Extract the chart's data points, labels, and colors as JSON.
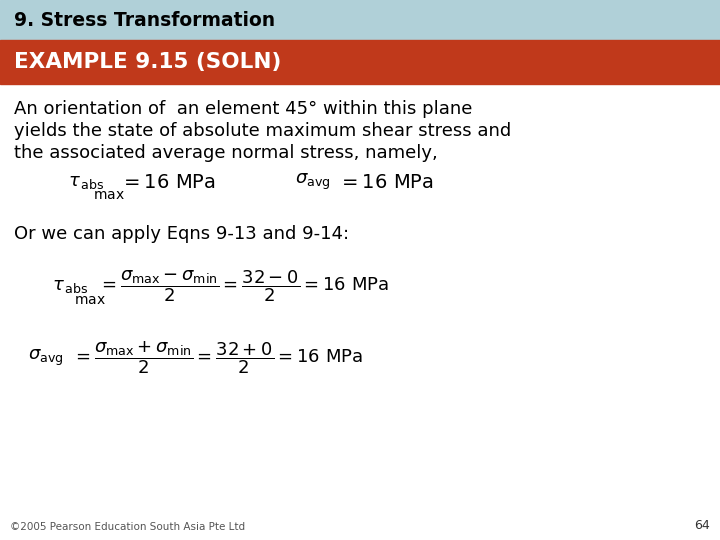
{
  "title_bar_text": "9. Stress Transformation",
  "title_bar_bg": "#b0d0d8",
  "title_bar_fg": "#000000",
  "subtitle_bar_text": "EXAMPLE 9.15 (SOLN)",
  "subtitle_bar_bg": "#c0391b",
  "subtitle_bar_fg": "#ffffff",
  "body_bg": "#ffffff",
  "footer_text": "©2005 Pearson Education South Asia Pte Ltd",
  "footer_page": "64",
  "paragraph_line1": "An orientation of  an element 45° within this plane",
  "paragraph_line2": "yields the state of absolute maximum shear stress and",
  "paragraph_line3": "the associated average normal stress, namely,",
  "orwe": "Or we can apply Eqns 9-13 and 9-14:"
}
